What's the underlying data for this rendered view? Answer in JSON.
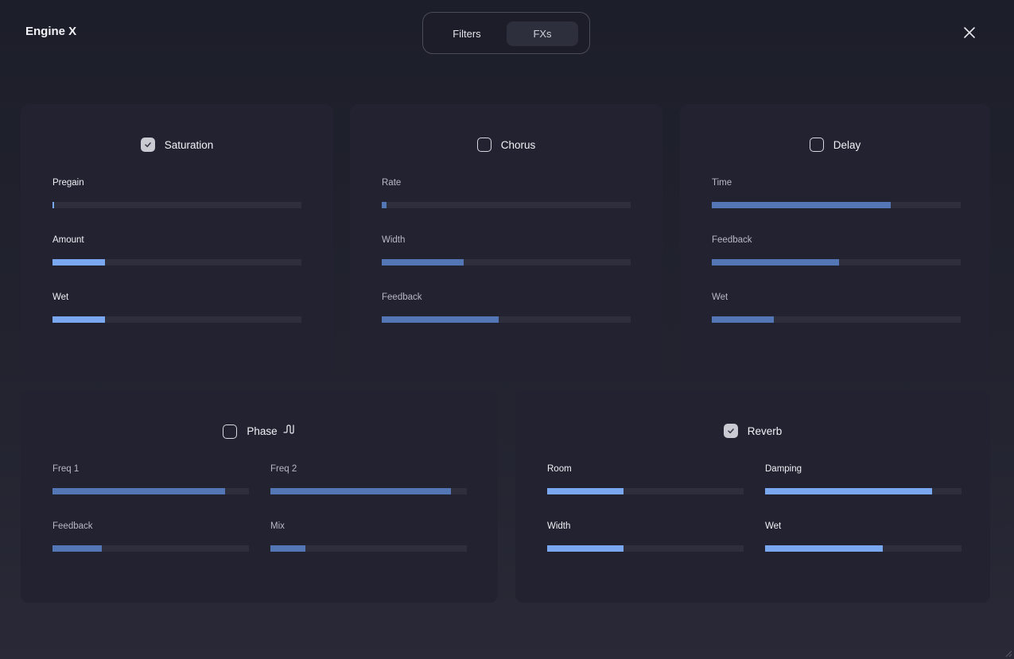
{
  "app": {
    "title": "Engine X"
  },
  "tabs": [
    {
      "label": "Filters",
      "selected": false
    },
    {
      "label": "FXs",
      "selected": true
    }
  ],
  "icons": {
    "close": "close-icon",
    "checkbox": "checkbox-icon",
    "wave": "wave-icon"
  },
  "colors": {
    "accent_active": "#79a7f0",
    "accent_inactive": "#5376b4",
    "track": "#2e2f3d",
    "panel": "#232231"
  },
  "fx": {
    "saturation": {
      "title": "Saturation",
      "enabled": true,
      "params": [
        {
          "label": "Pregain",
          "value": 0.005
        },
        {
          "label": "Amount",
          "value": 0.21
        },
        {
          "label": "Wet",
          "value": 0.21
        }
      ]
    },
    "chorus": {
      "title": "Chorus",
      "enabled": false,
      "params": [
        {
          "label": "Rate",
          "value": 0.02
        },
        {
          "label": "Width",
          "value": 0.33
        },
        {
          "label": "Feedback",
          "value": 0.47
        }
      ]
    },
    "delay": {
      "title": "Delay",
      "enabled": false,
      "params": [
        {
          "label": "Time",
          "value": 0.72
        },
        {
          "label": "Feedback",
          "value": 0.51
        },
        {
          "label": "Wet",
          "value": 0.25
        }
      ]
    },
    "phase": {
      "title": "Phase",
      "enabled": false,
      "params": [
        {
          "label": "Freq 1",
          "value": 0.88
        },
        {
          "label": "Freq 2",
          "value": 0.92
        },
        {
          "label": "Feedback",
          "value": 0.25
        },
        {
          "label": "Mix",
          "value": 0.18
        }
      ]
    },
    "reverb": {
      "title": "Reverb",
      "enabled": true,
      "params": [
        {
          "label": "Room",
          "value": 0.39
        },
        {
          "label": "Damping",
          "value": 0.85
        },
        {
          "label": "Width",
          "value": 0.39
        },
        {
          "label": "Wet",
          "value": 0.6
        }
      ]
    }
  }
}
